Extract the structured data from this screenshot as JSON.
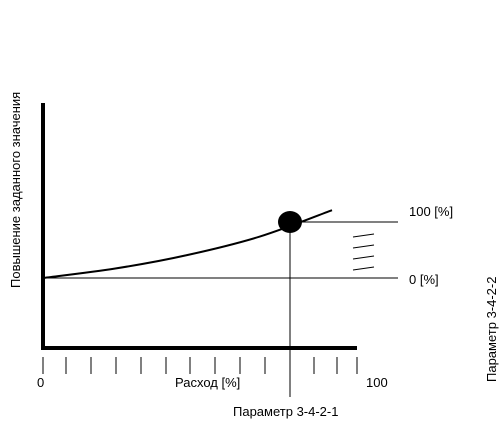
{
  "labels": {
    "y_axis": "Повышение заданного значения",
    "x_axis": "Расход [%]",
    "x_min": "0",
    "x_max": "100",
    "level_100": "100 [%]",
    "level_0": "0 [%]",
    "param_x": "Параметр 3-4-2-1",
    "param_y": "Параметр 3-4-2-2"
  },
  "curve": {
    "flow_pct": [
      0,
      25,
      50,
      75,
      100
    ],
    "setpoint_rise_pct": [
      0,
      17,
      41,
      74,
      121
    ]
  },
  "operating_point": {
    "flow_pct": 76,
    "setpoint_rise_pct": 100
  },
  "colors": {
    "ink": "#000000",
    "background": "#ffffff"
  }
}
